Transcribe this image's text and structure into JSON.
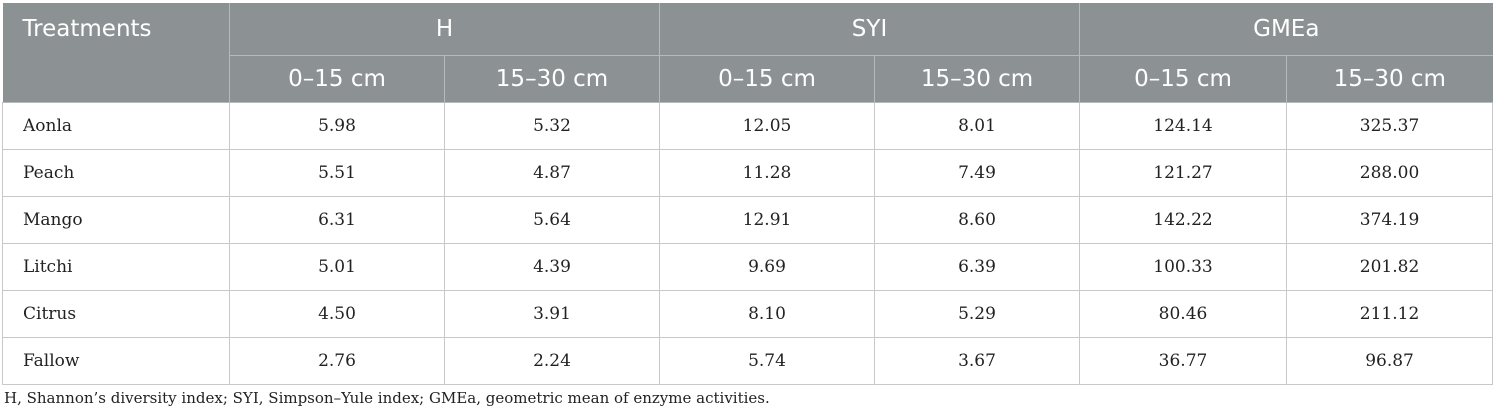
{
  "table": {
    "header": {
      "treatments": "Treatments",
      "groups": [
        "H",
        "SYI",
        "GMEa"
      ],
      "depths": [
        "0–15 cm",
        "15–30 cm",
        "0–15 cm",
        "15–30 cm",
        "0–15 cm",
        "15–30 cm"
      ]
    },
    "rows": [
      {
        "name": "Aonla",
        "values": [
          "5.98",
          "5.32",
          "12.05",
          "8.01",
          "124.14",
          "325.37"
        ]
      },
      {
        "name": "Peach",
        "values": [
          "5.51",
          "4.87",
          "11.28",
          "7.49",
          "121.27",
          "288.00"
        ]
      },
      {
        "name": "Mango",
        "values": [
          "6.31",
          "5.64",
          "12.91",
          "8.60",
          "142.22",
          "374.19"
        ]
      },
      {
        "name": "Litchi",
        "values": [
          "5.01",
          "4.39",
          "9.69",
          "6.39",
          "100.33",
          "201.82"
        ]
      },
      {
        "name": "Citrus",
        "values": [
          "4.50",
          "3.91",
          "8.10",
          "5.29",
          "80.46",
          "211.12"
        ]
      },
      {
        "name": "Fallow",
        "values": [
          "2.76",
          "2.24",
          "5.74",
          "3.67",
          "36.77",
          "96.87"
        ]
      }
    ]
  },
  "footnote": "H, Shannon’s diversity index; SYI, Simpson–Yule index; GMEa, geometric mean of enzyme activities.",
  "colors": {
    "header_bg": "#8c9294",
    "header_text": "#ffffff",
    "rule": "#c8c8c8"
  }
}
